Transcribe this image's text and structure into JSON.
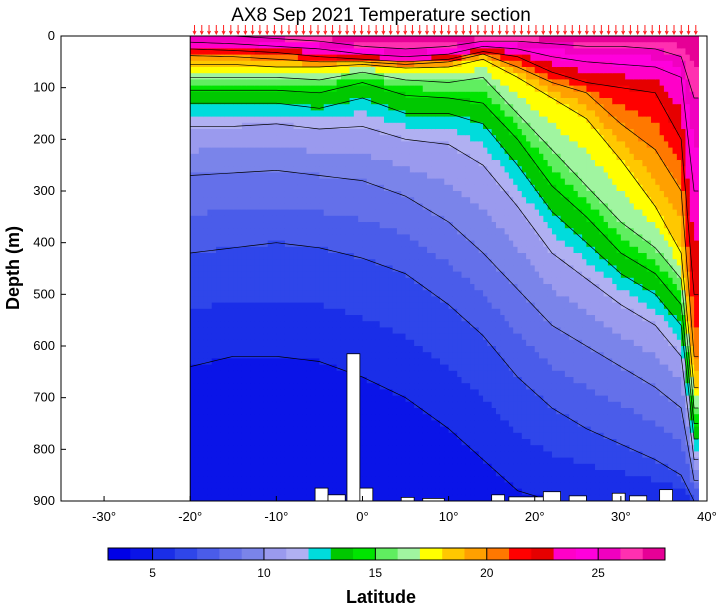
{
  "chart_data": {
    "type": "heatmap",
    "title": "AX8 Sep 2021 Temperature section",
    "xlabel": "Latitude",
    "ylabel": "Depth (m)",
    "xlim": [
      -35,
      40
    ],
    "ylim": [
      0,
      900
    ],
    "y_inverted": true,
    "x_ticks": [
      {
        "value": -30,
        "label": "-30°"
      },
      {
        "value": -20,
        "label": "-20°"
      },
      {
        "value": -10,
        "label": "-10°"
      },
      {
        "value": 0,
        "label": "0°"
      },
      {
        "value": 10,
        "label": "10°"
      },
      {
        "value": 20,
        "label": "20°"
      },
      {
        "value": 30,
        "label": "30°"
      },
      {
        "value": 40,
        "label": "40°"
      }
    ],
    "y_ticks": [
      {
        "value": 0,
        "label": "0"
      },
      {
        "value": 100,
        "label": "100"
      },
      {
        "value": 200,
        "label": "200"
      },
      {
        "value": 300,
        "label": "300"
      },
      {
        "value": 400,
        "label": "400"
      },
      {
        "value": 500,
        "label": "500"
      },
      {
        "value": 600,
        "label": "600"
      },
      {
        "value": 700,
        "label": "700"
      },
      {
        "value": 800,
        "label": "800"
      },
      {
        "value": 900,
        "label": "900"
      }
    ],
    "section_lat_range": [
      -20,
      39
    ],
    "colorbar": {
      "range": [
        3,
        28
      ],
      "ticks": [
        {
          "value": 5,
          "label": "5"
        },
        {
          "value": 10,
          "label": "10"
        },
        {
          "value": 15,
          "label": "15"
        },
        {
          "value": 20,
          "label": "20"
        },
        {
          "value": 25,
          "label": "25"
        }
      ],
      "colors": [
        "#0000e6",
        "#0a14e8",
        "#1a2ee8",
        "#2f46ea",
        "#4a5cea",
        "#6470ea",
        "#7a84ea",
        "#9a9aee",
        "#b0b0f2",
        "#00dcdc",
        "#00c800",
        "#00e400",
        "#60ee60",
        "#a0f5a0",
        "#ffff00",
        "#ffc800",
        "#ffa000",
        "#ff7800",
        "#ff0000",
        "#e60000",
        "#ff00c8",
        "#ff00dc",
        "#f000c0",
        "#ff30b0",
        "#e60096"
      ]
    },
    "contour_levels": [
      3,
      4,
      5,
      6,
      7,
      8,
      9,
      10,
      11,
      12,
      13,
      14,
      15,
      16,
      17,
      18,
      19,
      20,
      21,
      22,
      23,
      24,
      25,
      26,
      27,
      28
    ],
    "isotherms_depth_m": {
      "lat": [
        -20,
        -15,
        -10,
        -5,
        0,
        5,
        10,
        14,
        18,
        22,
        26,
        30,
        34,
        37,
        38.5
      ],
      "levels": {
        "5": [
          640,
          620,
          620,
          630,
          660,
          700,
          760,
          820,
          880,
          900,
          900,
          900,
          900,
          900,
          900
        ],
        "7": [
          420,
          410,
          400,
          410,
          430,
          460,
          520,
          580,
          660,
          720,
          760,
          790,
          820,
          850,
          900
        ],
        "9": [
          270,
          265,
          260,
          270,
          280,
          310,
          360,
          420,
          490,
          560,
          600,
          640,
          680,
          720,
          860
        ],
        "11": [
          175,
          175,
          170,
          180,
          175,
          200,
          210,
          250,
          330,
          420,
          470,
          520,
          560,
          620,
          820
        ],
        "13": [
          130,
          130,
          130,
          140,
          120,
          150,
          150,
          170,
          250,
          340,
          400,
          460,
          500,
          560,
          780
        ],
        "14": [
          105,
          105,
          105,
          110,
          90,
          115,
          120,
          130,
          200,
          290,
          350,
          420,
          460,
          520,
          750
        ],
        "16": [
          80,
          80,
          80,
          85,
          70,
          85,
          90,
          80,
          150,
          220,
          290,
          360,
          410,
          470,
          720
        ],
        "18": [
          55,
          55,
          60,
          60,
          55,
          62,
          60,
          45,
          80,
          120,
          160,
          240,
          330,
          420,
          680
        ],
        "20": [
          38,
          40,
          45,
          50,
          50,
          55,
          50,
          35,
          60,
          90,
          110,
          170,
          220,
          300,
          620
        ],
        "22": [
          25,
          28,
          32,
          40,
          45,
          50,
          45,
          30,
          40,
          70,
          90,
          100,
          110,
          200,
          500
        ],
        "24": [
          12,
          15,
          20,
          25,
          35,
          40,
          35,
          20,
          25,
          40,
          50,
          55,
          60,
          80,
          300
        ],
        "26": [
          0,
          0,
          5,
          10,
          20,
          25,
          20,
          10,
          10,
          15,
          20,
          20,
          25,
          40,
          120
        ]
      }
    },
    "seafloor_blocks": [
      {
        "lat_start": -1.8,
        "lat_end": -0.3,
        "top_depth": 615
      },
      {
        "lat_start": -5.5,
        "lat_end": -4.0,
        "top_depth": 875
      },
      {
        "lat_start": -4.0,
        "lat_end": -2.0,
        "top_depth": 888
      },
      {
        "lat_start": -0.3,
        "lat_end": 1.2,
        "top_depth": 875
      },
      {
        "lat_start": 4.5,
        "lat_end": 6.0,
        "top_depth": 893
      },
      {
        "lat_start": 7.0,
        "lat_end": 9.5,
        "top_depth": 895
      },
      {
        "lat_start": 15.0,
        "lat_end": 16.5,
        "top_depth": 888
      },
      {
        "lat_start": 17.0,
        "lat_end": 21.0,
        "top_depth": 892
      },
      {
        "lat_start": 21.0,
        "lat_end": 23.0,
        "top_depth": 882
      },
      {
        "lat_start": 24.0,
        "lat_end": 26.0,
        "top_depth": 890
      },
      {
        "lat_start": 29.0,
        "lat_end": 30.5,
        "top_depth": 885
      },
      {
        "lat_start": 31.0,
        "lat_end": 33.0,
        "top_depth": 890
      },
      {
        "lat_start": 34.5,
        "lat_end": 36.0,
        "top_depth": 878
      }
    ],
    "station_count": 70
  }
}
